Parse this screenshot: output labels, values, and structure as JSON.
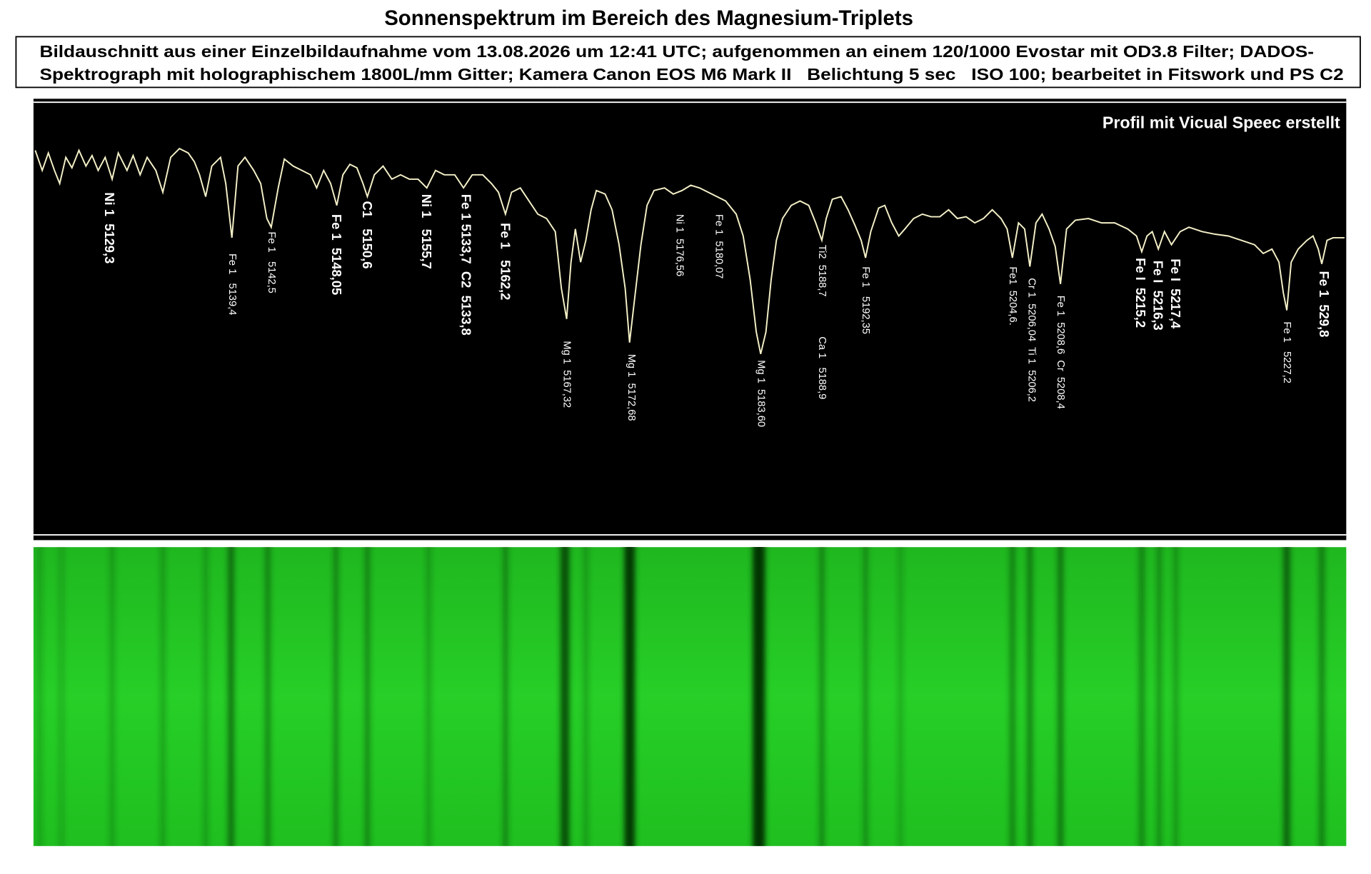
{
  "header": {
    "title": "Sonnenspektrum im Bereich des Magnesium-Triplets",
    "caption": [
      "Bildauschnitt aus einer Einzelbildaufnahme vom 13.08.2026 um 12:41 UTC; aufgenommen an einem 120/1000 Evostar mit OD3.8 Filter; DADOS-",
      "Spektrograph mit holographischem 1800L/mm Gitter; Kamera Canon EOS M6 Mark II   Belichtung 5 sec   ISO 100; bearbeitet in Fitswork und PS C2"
    ]
  },
  "profile": {
    "note": "Profil mit Vicual Speec erstellt",
    "labels": [
      "Ni 1  5129,3",
      "Fe 1   5139,4",
      "Fe 1   5142,5",
      "Fe 1  5148,05",
      "C1   5150,6",
      "Ni 1   5155,7",
      "Fe 1 5133,7  C2  5133,8",
      "Fe 1   5162,2",
      "Mg 1  5167,32",
      "Mg 1  5172,68",
      "Ni 1  5176,56",
      "Fe 1  5180,07",
      "Mg 1  5183,60",
      "Ti2  5188,7",
      "Ca 1   5188,9",
      "Fe 1   5192,35",
      "Fe1  5204,6.",
      "Cr 1  5206,04  Ti 1  5206,2",
      "Fe 1  5208,6  Cr  5208,4",
      "Fe I  5215,2",
      "Fe I  5216,3",
      "Fe I  5217,4",
      "Fe 1   5227,2",
      "Fe 1  529,8"
    ]
  }
}
